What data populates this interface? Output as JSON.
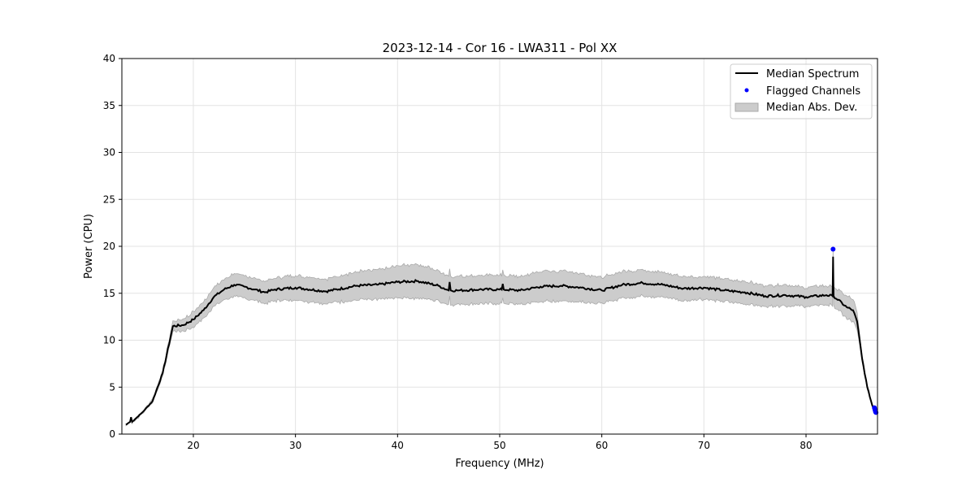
{
  "chart_data": {
    "type": "line",
    "title": "2023-12-14 - Cor 16 - LWA311 - Pol XX",
    "xlabel": "Frequency (MHz)",
    "ylabel": "Power (CPU)",
    "xlim": [
      13,
      87
    ],
    "ylim": [
      0,
      40
    ],
    "xticks": [
      20,
      30,
      40,
      50,
      60,
      70,
      80
    ],
    "yticks": [
      0,
      5,
      10,
      15,
      20,
      25,
      30,
      35,
      40
    ],
    "grid": true,
    "legend_position": "top-right",
    "legend": [
      "Median Spectrum",
      "Flagged Channels",
      "Median Abs. Dev."
    ],
    "colors": {
      "median": "#000000",
      "flagged": "#0000ff",
      "mad": "#cccccc"
    },
    "series": [
      {
        "name": "Median Spectrum",
        "x": [
          13.4,
          13.8,
          13.9,
          14.0,
          15,
          16,
          17,
          18,
          19,
          20,
          21,
          22,
          23,
          24,
          25,
          26,
          27,
          28,
          30,
          33,
          36,
          38,
          40,
          42,
          44,
          45.0,
          45.1,
          45.2,
          46,
          48,
          50,
          50.2,
          50.3,
          50.4,
          52,
          54,
          56,
          58,
          60,
          62,
          64,
          66,
          68,
          70,
          72,
          74,
          76,
          78,
          80,
          82,
          82.6,
          82.65,
          82.7,
          84,
          84.6,
          85,
          85.5,
          86,
          86.5,
          87
        ],
        "y": [
          1.0,
          1.3,
          1.8,
          1.3,
          2.3,
          3.5,
          6.5,
          11.5,
          11.6,
          12.2,
          13.2,
          14.6,
          15.4,
          15.9,
          15.7,
          15.4,
          15.1,
          15.4,
          15.6,
          15.2,
          15.8,
          15.9,
          16.2,
          16.3,
          15.8,
          15.3,
          16.2,
          15.3,
          15.3,
          15.4,
          15.4,
          15.4,
          16.0,
          15.4,
          15.3,
          15.7,
          15.8,
          15.6,
          15.3,
          15.9,
          16.1,
          15.9,
          15.5,
          15.6,
          15.3,
          15.1,
          14.7,
          14.8,
          14.6,
          14.8,
          14.7,
          18.9,
          14.7,
          13.5,
          13.2,
          12.0,
          8.0,
          5.0,
          3.0,
          2.2
        ],
        "mad": [
          0.1,
          0.1,
          0.1,
          0.1,
          0.15,
          0.2,
          0.3,
          0.5,
          0.6,
          0.8,
          0.9,
          1.0,
          1.1,
          1.2,
          1.2,
          1.2,
          1.2,
          1.2,
          1.3,
          1.3,
          1.5,
          1.6,
          1.7,
          1.8,
          1.6,
          1.5,
          1.5,
          1.5,
          1.5,
          1.5,
          1.5,
          1.5,
          1.5,
          1.5,
          1.5,
          1.6,
          1.6,
          1.5,
          1.4,
          1.4,
          1.4,
          1.3,
          1.3,
          1.2,
          1.2,
          1.2,
          1.1,
          1.1,
          1.0,
          1.0,
          1.0,
          1.0,
          1.0,
          1.2,
          1.2,
          1.0,
          0.3,
          0.2,
          0.15,
          0.1
        ]
      },
      {
        "name": "Flagged Channels",
        "x": [
          82.65,
          86.7,
          86.75,
          86.8,
          86.85
        ],
        "y": [
          19.7,
          2.8,
          2.6,
          2.4,
          2.3
        ]
      }
    ]
  }
}
